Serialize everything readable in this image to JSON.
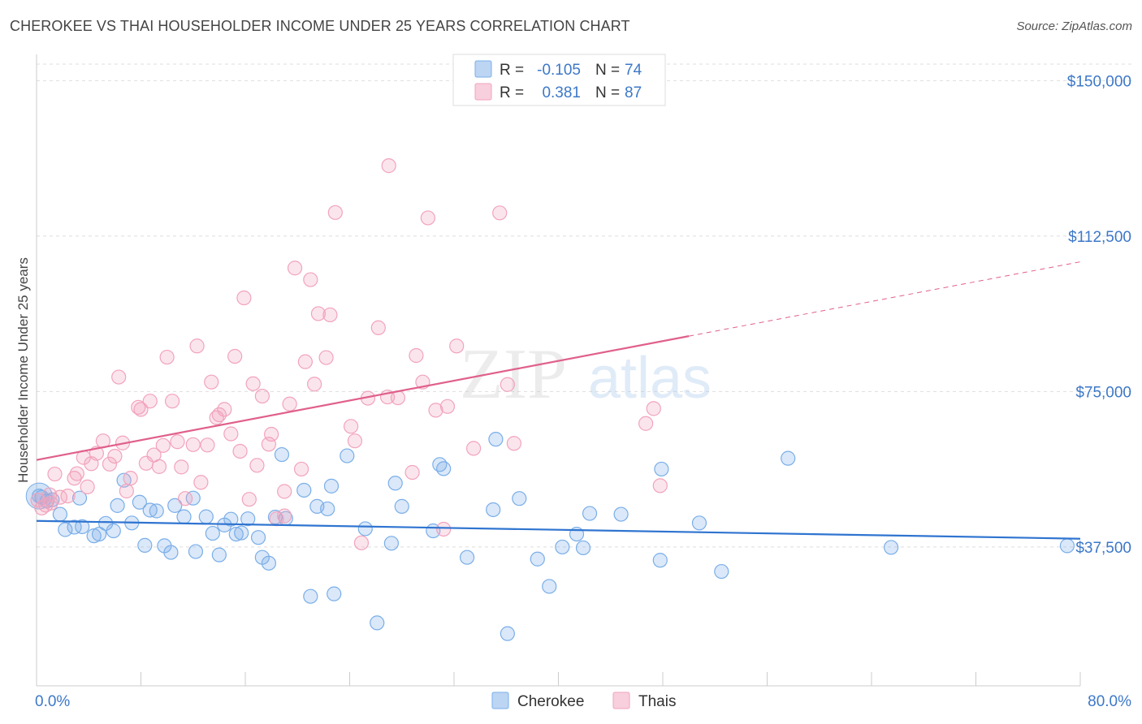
{
  "title": "CHEROKEE VS THAI HOUSEHOLDER INCOME UNDER 25 YEARS CORRELATION CHART",
  "source": "Source: ZipAtlas.com",
  "watermark": {
    "zip": "ZIP",
    "atlas": "atlas"
  },
  "chart_data": {
    "type": "scatter",
    "ylabel": "Householder Income Under 25 years",
    "x_tick_labels": [
      "0.0%",
      "80.0%"
    ],
    "xlim": [
      0,
      80
    ],
    "ylim": [
      4000,
      154000
    ],
    "y_ticks": [
      37500,
      75000,
      112500,
      150000
    ],
    "y_tick_labels": [
      "$37,500",
      "$75,000",
      "$112,500",
      "$150,000"
    ],
    "legend": {
      "position": "top-center",
      "rows": [
        {
          "r_label": "R =",
          "r_value": "-0.105",
          "n_label": "N =",
          "n_value": "74"
        },
        {
          "r_label": "R =",
          "r_value": "0.381",
          "n_label": "N =",
          "n_value": "87"
        }
      ]
    },
    "colors": {
      "cherokee": "#7aaee8",
      "thais": "#f2a3bc",
      "cherokee_line": "#2f74d0",
      "thais_line": "#e0608a",
      "axis_text": "#3d78c8"
    },
    "series": [
      {
        "name": "Cherokee",
        "trend": {
          "x": [
            0,
            80
          ],
          "y": [
            43800,
            39500
          ],
          "solid_until": 80
        },
        "points": [
          [
            0.4,
            49500
          ],
          [
            0.8,
            48600
          ],
          [
            1.2,
            48900
          ],
          [
            1.8,
            45400
          ],
          [
            2.2,
            41700
          ],
          [
            2.9,
            42300
          ],
          [
            3.3,
            49300
          ],
          [
            3.5,
            42400
          ],
          [
            4.4,
            40200
          ],
          [
            4.8,
            40600
          ],
          [
            5.3,
            43200
          ],
          [
            5.9,
            41400
          ],
          [
            6.2,
            47500
          ],
          [
            6.7,
            53600
          ],
          [
            7.3,
            43300
          ],
          [
            7.9,
            48300
          ],
          [
            8.3,
            37900
          ],
          [
            8.7,
            46400
          ],
          [
            9.2,
            46200
          ],
          [
            9.8,
            37800
          ],
          [
            10.3,
            36200
          ],
          [
            10.6,
            47500
          ],
          [
            11.3,
            44800
          ],
          [
            12.0,
            49300
          ],
          [
            12.2,
            36400
          ],
          [
            13.0,
            44800
          ],
          [
            13.5,
            40800
          ],
          [
            14.0,
            35600
          ],
          [
            14.4,
            42800
          ],
          [
            14.9,
            44200
          ],
          [
            15.3,
            40600
          ],
          [
            15.7,
            40900
          ],
          [
            16.2,
            44300
          ],
          [
            17.0,
            39800
          ],
          [
            17.3,
            35000
          ],
          [
            17.8,
            33600
          ],
          [
            18.3,
            44700
          ],
          [
            18.8,
            59800
          ],
          [
            19.1,
            44400
          ],
          [
            20.5,
            51200
          ],
          [
            21.0,
            25600
          ],
          [
            21.5,
            47300
          ],
          [
            22.3,
            46700
          ],
          [
            22.6,
            52200
          ],
          [
            22.8,
            26200
          ],
          [
            23.8,
            59500
          ],
          [
            25.2,
            41900
          ],
          [
            26.1,
            19200
          ],
          [
            27.2,
            38400
          ],
          [
            27.5,
            52900
          ],
          [
            28.0,
            47300
          ],
          [
            30.4,
            41400
          ],
          [
            30.9,
            57400
          ],
          [
            31.2,
            56400
          ],
          [
            33.0,
            35000
          ],
          [
            35.0,
            46500
          ],
          [
            35.2,
            63500
          ],
          [
            36.1,
            16600
          ],
          [
            37.0,
            49200
          ],
          [
            38.4,
            34600
          ],
          [
            39.3,
            28000
          ],
          [
            40.3,
            37500
          ],
          [
            41.4,
            40600
          ],
          [
            41.9,
            37300
          ],
          [
            42.4,
            45600
          ],
          [
            44.8,
            45400
          ],
          [
            47.8,
            34300
          ],
          [
            47.9,
            56300
          ],
          [
            50.8,
            43300
          ],
          [
            52.5,
            31600
          ],
          [
            57.6,
            58900
          ],
          [
            65.5,
            37400
          ],
          [
            79.0,
            37800
          ],
          [
            0.2,
            49800
          ]
        ]
      },
      {
        "name": "Thais",
        "trend": {
          "x": [
            0,
            80
          ],
          "y": [
            58500,
            106300
          ],
          "solid_until": 50
        },
        "points": [
          [
            0.4,
            46900
          ],
          [
            0.7,
            47600
          ],
          [
            1.1,
            48100
          ],
          [
            1.4,
            55100
          ],
          [
            1.8,
            49500
          ],
          [
            2.4,
            49800
          ],
          [
            2.9,
            54100
          ],
          [
            3.1,
            55200
          ],
          [
            3.6,
            59100
          ],
          [
            3.9,
            52000
          ],
          [
            4.2,
            57600
          ],
          [
            4.6,
            60100
          ],
          [
            5.1,
            63100
          ],
          [
            5.6,
            57500
          ],
          [
            6.0,
            59400
          ],
          [
            6.3,
            78500
          ],
          [
            6.6,
            62600
          ],
          [
            6.9,
            51000
          ],
          [
            7.2,
            54100
          ],
          [
            7.8,
            71200
          ],
          [
            8.0,
            70700
          ],
          [
            8.4,
            57700
          ],
          [
            8.7,
            72700
          ],
          [
            9.0,
            59700
          ],
          [
            9.4,
            56900
          ],
          [
            9.7,
            62000
          ],
          [
            10.0,
            83300
          ],
          [
            10.4,
            72700
          ],
          [
            10.8,
            62900
          ],
          [
            11.1,
            56800
          ],
          [
            11.4,
            49200
          ],
          [
            12.0,
            62200
          ],
          [
            12.3,
            86000
          ],
          [
            12.6,
            53100
          ],
          [
            13.1,
            62100
          ],
          [
            13.4,
            77300
          ],
          [
            13.8,
            68700
          ],
          [
            14.0,
            69400
          ],
          [
            14.4,
            70700
          ],
          [
            14.9,
            64800
          ],
          [
            15.2,
            83500
          ],
          [
            15.6,
            60600
          ],
          [
            15.9,
            97600
          ],
          [
            16.3,
            49000
          ],
          [
            16.6,
            76900
          ],
          [
            16.9,
            57200
          ],
          [
            17.3,
            73900
          ],
          [
            17.8,
            62300
          ],
          [
            18.0,
            64700
          ],
          [
            18.4,
            44300
          ],
          [
            19.0,
            50900
          ],
          [
            19.4,
            72000
          ],
          [
            19.8,
            104800
          ],
          [
            20.3,
            56300
          ],
          [
            20.6,
            82200
          ],
          [
            21.0,
            102000
          ],
          [
            21.3,
            76800
          ],
          [
            21.6,
            93800
          ],
          [
            22.2,
            83200
          ],
          [
            22.5,
            93500
          ],
          [
            22.9,
            118200
          ],
          [
            24.1,
            66600
          ],
          [
            24.4,
            63100
          ],
          [
            24.9,
            38500
          ],
          [
            25.4,
            73400
          ],
          [
            26.2,
            90400
          ],
          [
            26.9,
            73700
          ],
          [
            27.0,
            129500
          ],
          [
            27.7,
            73500
          ],
          [
            28.8,
            55500
          ],
          [
            29.1,
            83700
          ],
          [
            29.6,
            77300
          ],
          [
            30.0,
            116900
          ],
          [
            30.6,
            70500
          ],
          [
            31.2,
            41800
          ],
          [
            31.5,
            71400
          ],
          [
            32.2,
            86000
          ],
          [
            33.5,
            61300
          ],
          [
            35.5,
            118100
          ],
          [
            36.1,
            76700
          ],
          [
            36.6,
            62500
          ],
          [
            46.7,
            67300
          ],
          [
            47.3,
            70900
          ],
          [
            47.8,
            52300
          ],
          [
            0.1,
            48800
          ],
          [
            1.0,
            50100
          ],
          [
            19.0,
            45000
          ]
        ]
      }
    ]
  }
}
